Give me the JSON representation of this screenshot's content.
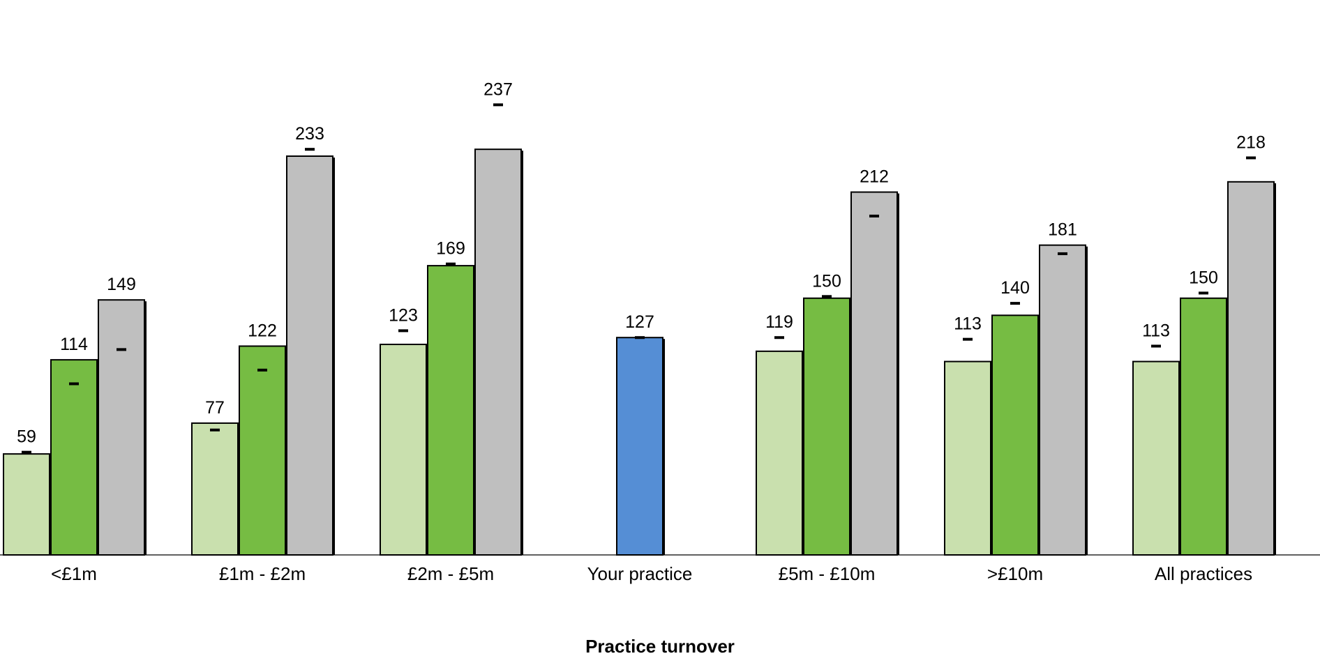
{
  "chart_data": {
    "type": "bar",
    "xlabel": "Practice turnover",
    "ylabel": "",
    "ylim": [
      0,
      240
    ],
    "grid": false,
    "legend": "none",
    "colors": {
      "lower": "#c9e0ae",
      "median": "#76bc43",
      "upper": "#bfbfbf",
      "practice": "#558ed5",
      "outline": "#000000"
    },
    "groups": [
      {
        "label": "<£1m",
        "bars": [
          {
            "role": "lower",
            "value": 59,
            "marker": 60,
            "show_label": true
          },
          {
            "role": "median",
            "value": 114,
            "marker": 100,
            "show_label": true
          },
          {
            "role": "upper",
            "value": 149,
            "marker": 120,
            "show_label": true
          }
        ]
      },
      {
        "label": "£1m - £2m",
        "bars": [
          {
            "role": "lower",
            "value": 77,
            "marker": 73,
            "show_label": true
          },
          {
            "role": "median",
            "value": 122,
            "marker": 108,
            "show_label": true
          },
          {
            "role": "upper",
            "value": 233,
            "marker": 237,
            "show_label": true
          }
        ]
      },
      {
        "label": "£2m - £5m",
        "bars": [
          {
            "role": "lower",
            "value": 123,
            "marker": 131,
            "show_label": true
          },
          {
            "role": "median",
            "value": 169,
            "marker": 170,
            "show_label": true
          },
          {
            "role": "upper",
            "value": 237,
            "marker": 263,
            "show_label": true
          }
        ]
      },
      {
        "label": "Your practice",
        "bars": [
          {
            "role": "practice",
            "value": 127,
            "marker": 127,
            "show_label": true
          }
        ]
      },
      {
        "label": "£5m - £10m",
        "bars": [
          {
            "role": "lower",
            "value": 119,
            "marker": 127,
            "show_label": true
          },
          {
            "role": "median",
            "value": 150,
            "marker": 151,
            "show_label": true
          },
          {
            "role": "upper",
            "value": 212,
            "marker": 198,
            "show_label": true
          }
        ]
      },
      {
        "label": ">£10m",
        "bars": [
          {
            "role": "lower",
            "value": 113,
            "marker": 126,
            "show_label": true
          },
          {
            "role": "median",
            "value": 140,
            "marker": 147,
            "show_label": true
          },
          {
            "role": "upper",
            "value": 181,
            "marker": 176,
            "show_label": true
          }
        ]
      },
      {
        "label": "All practices",
        "bars": [
          {
            "role": "lower",
            "value": 113,
            "marker": 122,
            "show_label": true
          },
          {
            "role": "median",
            "value": 150,
            "marker": 153,
            "show_label": true
          },
          {
            "role": "upper",
            "value": 218,
            "marker": 232,
            "show_label": true
          }
        ]
      }
    ]
  }
}
